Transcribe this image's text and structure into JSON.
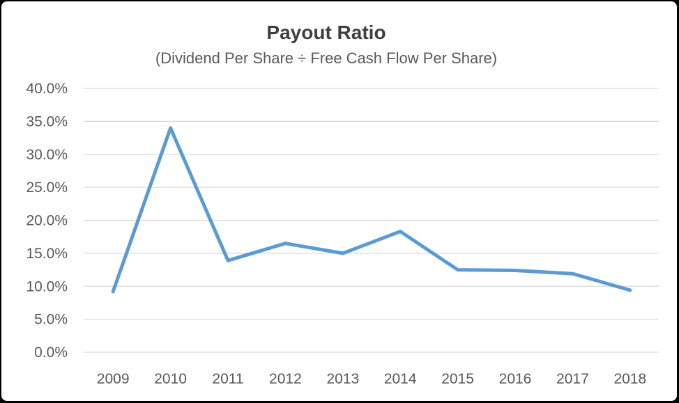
{
  "chart_data": {
    "type": "line",
    "title": "Payout Ratio",
    "subtitle": "(Dividend Per Share ÷ Free Cash Flow Per Share)",
    "xlabel": "",
    "ylabel": "",
    "categories": [
      "2009",
      "2010",
      "2011",
      "2012",
      "2013",
      "2014",
      "2015",
      "2016",
      "2017",
      "2018"
    ],
    "series": [
      {
        "values": [
          9.2,
          34.0,
          13.9,
          16.5,
          15.0,
          18.3,
          12.5,
          12.4,
          11.9,
          9.4
        ],
        "color": "#5b9bd5"
      }
    ],
    "ylim": [
      0,
      40
    ],
    "y_ticks": [
      "0.0%",
      "5.0%",
      "10.0%",
      "15.0%",
      "20.0%",
      "25.0%",
      "30.0%",
      "35.0%",
      "40.0%"
    ],
    "grid": true,
    "legend": "none"
  }
}
